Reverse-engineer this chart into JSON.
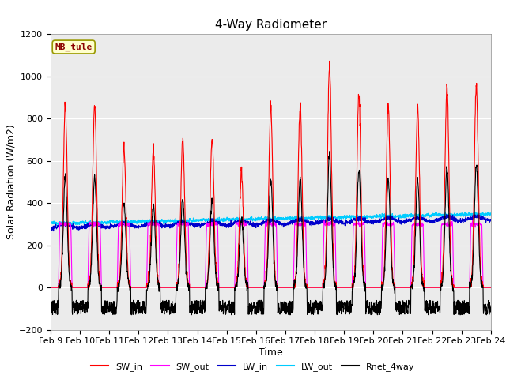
{
  "title": "4-Way Radiometer",
  "xlabel": "Time",
  "ylabel": "Solar Radiation (W/m2)",
  "ylim": [
    -200,
    1200
  ],
  "xlim": [
    0,
    15
  ],
  "xtick_labels": [
    "Feb 9",
    "Feb 10",
    "Feb 11",
    "Feb 12",
    "Feb 13",
    "Feb 14",
    "Feb 15",
    "Feb 16",
    "Feb 17",
    "Feb 18",
    "Feb 19",
    "Feb 20",
    "Feb 21",
    "Feb 22",
    "Feb 23",
    "Feb 24"
  ],
  "station_label": "MB_tule",
  "station_label_color": "#8B0000",
  "station_box_facecolor": "#FFFFCC",
  "station_box_edgecolor": "#999900",
  "colors": {
    "SW_in": "#FF0000",
    "SW_out": "#FF00FF",
    "LW_in": "#0000CC",
    "LW_out": "#00CCFF",
    "Rnet_4way": "#000000"
  },
  "plot_bg_color": "#EBEBEB",
  "grid_color": "#FFFFFF",
  "title_fontsize": 11,
  "label_fontsize": 9,
  "tick_fontsize": 8
}
